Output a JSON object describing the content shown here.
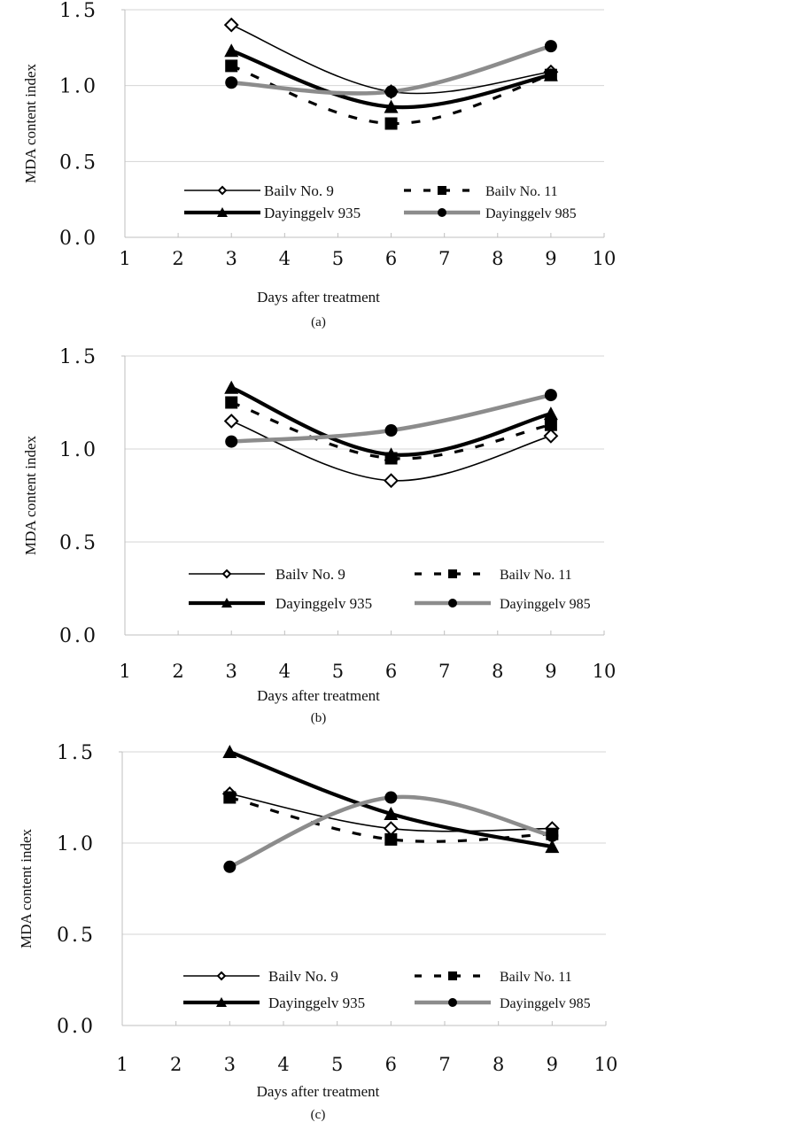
{
  "chart_data": [
    {
      "type": "line",
      "panel_label": "(a)",
      "title": "",
      "xlabel": "Days after treatment",
      "ylabel": "MDA content index",
      "xlim": [
        1,
        10
      ],
      "ylim": [
        0.0,
        1.5
      ],
      "x_ticks": [
        "1",
        "2",
        "3",
        "4",
        "5",
        "6",
        "7",
        "8",
        "9",
        "10"
      ],
      "y_ticks": [
        "0.0",
        "0.5",
        "1.0",
        "1.5"
      ],
      "grid": "horizontal",
      "legend_position": "bottom-inside",
      "x": [
        3,
        6,
        9
      ],
      "series": [
        {
          "name": "Bailv No. 9",
          "values": [
            1.4,
            0.96,
            1.09
          ]
        },
        {
          "name": "Bailv No. 11",
          "values": [
            1.13,
            0.75,
            1.07
          ]
        },
        {
          "name": "Dayinggelv 935",
          "values": [
            1.23,
            0.86,
            1.07
          ]
        },
        {
          "name": "Dayinggelv 985",
          "values": [
            1.02,
            0.96,
            1.26
          ]
        }
      ]
    },
    {
      "type": "line",
      "panel_label": "(b)",
      "title": "",
      "xlabel": "Days after treatment",
      "ylabel": "MDA content index",
      "xlim": [
        1,
        10
      ],
      "ylim": [
        0.0,
        1.5
      ],
      "x_ticks": [
        "1",
        "2",
        "3",
        "4",
        "5",
        "6",
        "7",
        "8",
        "9",
        "10"
      ],
      "y_ticks": [
        "0.0",
        "0.5",
        "1.0",
        "1.5"
      ],
      "grid": "horizontal",
      "legend_position": "bottom-inside",
      "x": [
        3,
        6,
        9
      ],
      "series": [
        {
          "name": "Bailv No. 9",
          "values": [
            1.15,
            0.83,
            1.07
          ]
        },
        {
          "name": "Bailv No. 11",
          "values": [
            1.25,
            0.95,
            1.13
          ]
        },
        {
          "name": "Dayinggelv 935",
          "values": [
            1.33,
            0.97,
            1.19
          ]
        },
        {
          "name": "Dayinggelv 985",
          "values": [
            1.04,
            1.1,
            1.29
          ]
        }
      ]
    },
    {
      "type": "line",
      "panel_label": "(c)",
      "title": "",
      "xlabel": "Days after treatment",
      "ylabel": "MDA content index",
      "xlim": [
        1,
        10
      ],
      "ylim": [
        0.0,
        1.5
      ],
      "x_ticks": [
        "1",
        "2",
        "3",
        "4",
        "5",
        "6",
        "7",
        "8",
        "9",
        "10"
      ],
      "y_ticks": [
        "0.0",
        "0.5",
        "1.0",
        "1.5"
      ],
      "grid": "horizontal",
      "legend_position": "bottom-inside",
      "x": [
        3,
        6,
        9
      ],
      "series": [
        {
          "name": "Bailv No. 9",
          "values": [
            1.27,
            1.08,
            1.08
          ]
        },
        {
          "name": "Bailv No. 11",
          "values": [
            1.25,
            1.02,
            1.05
          ]
        },
        {
          "name": "Dayinggelv 935",
          "values": [
            1.5,
            1.16,
            0.98
          ]
        },
        {
          "name": "Dayinggelv 985",
          "values": [
            0.87,
            1.25,
            1.04
          ]
        }
      ]
    }
  ],
  "series_styles": [
    {
      "name": "Bailv No. 9",
      "color": "#000000",
      "marker": "open-diamond",
      "line": "thin-solid"
    },
    {
      "name": "Bailv No. 11",
      "color": "#000000",
      "marker": "filled-square",
      "line": "dashed"
    },
    {
      "name": "Dayinggelv 935",
      "color": "#000000",
      "marker": "filled-triangle",
      "line": "thick-solid"
    },
    {
      "name": "Dayinggelv 985",
      "color": "#8c8c8c",
      "marker": "filled-circle",
      "line": "thick-solid-gray"
    }
  ]
}
